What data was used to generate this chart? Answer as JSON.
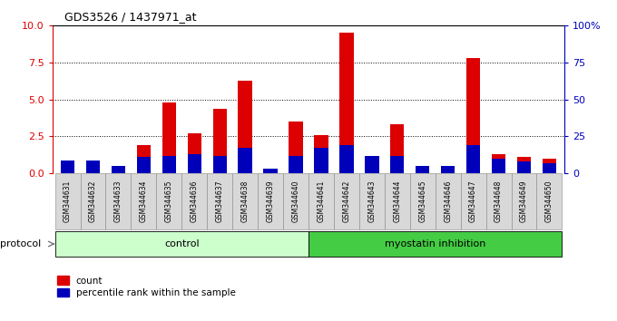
{
  "title": "GDS3526 / 1437971_at",
  "samples": [
    "GSM344631",
    "GSM344632",
    "GSM344633",
    "GSM344634",
    "GSM344635",
    "GSM344636",
    "GSM344637",
    "GSM344638",
    "GSM344639",
    "GSM344640",
    "GSM344641",
    "GSM344642",
    "GSM344643",
    "GSM344644",
    "GSM344645",
    "GSM344646",
    "GSM344647",
    "GSM344648",
    "GSM344649",
    "GSM344650"
  ],
  "count": [
    0.6,
    0.6,
    0.4,
    1.9,
    4.8,
    2.7,
    4.4,
    6.3,
    0.05,
    3.5,
    2.6,
    9.5,
    0.7,
    3.3,
    0.4,
    0.4,
    7.8,
    1.3,
    1.1,
    1.0
  ],
  "percentile": [
    9,
    9,
    5,
    11,
    12,
    13,
    12,
    17,
    3,
    12,
    17,
    19,
    12,
    12,
    5,
    5,
    19,
    10,
    8,
    7
  ],
  "control_indices": [
    0,
    1,
    2,
    3,
    4,
    5,
    6,
    7,
    8,
    9
  ],
  "myostatin_indices": [
    10,
    11,
    12,
    13,
    14,
    15,
    16,
    17,
    18,
    19
  ],
  "bar_width": 0.55,
  "ylim_left": [
    0,
    10
  ],
  "ylim_right": [
    0,
    100
  ],
  "yticks_left": [
    0,
    2.5,
    5.0,
    7.5,
    10
  ],
  "yticks_right": [
    0,
    25,
    50,
    75,
    100
  ],
  "ytick_labels_right": [
    "0",
    "25",
    "50",
    "75",
    "100%"
  ],
  "color_count": "#dd0000",
  "color_percentile": "#0000bb",
  "color_control_bg": "#ccffcc",
  "color_myostatin_bg": "#44cc44",
  "color_sample_bg": "#d8d8d8",
  "color_chart_bg": "#ffffff",
  "legend_count": "count",
  "legend_percentile": "percentile rank within the sample",
  "protocol_label": "protocol",
  "control_label": "control",
  "myostatin_label": "myostatin inhibition"
}
